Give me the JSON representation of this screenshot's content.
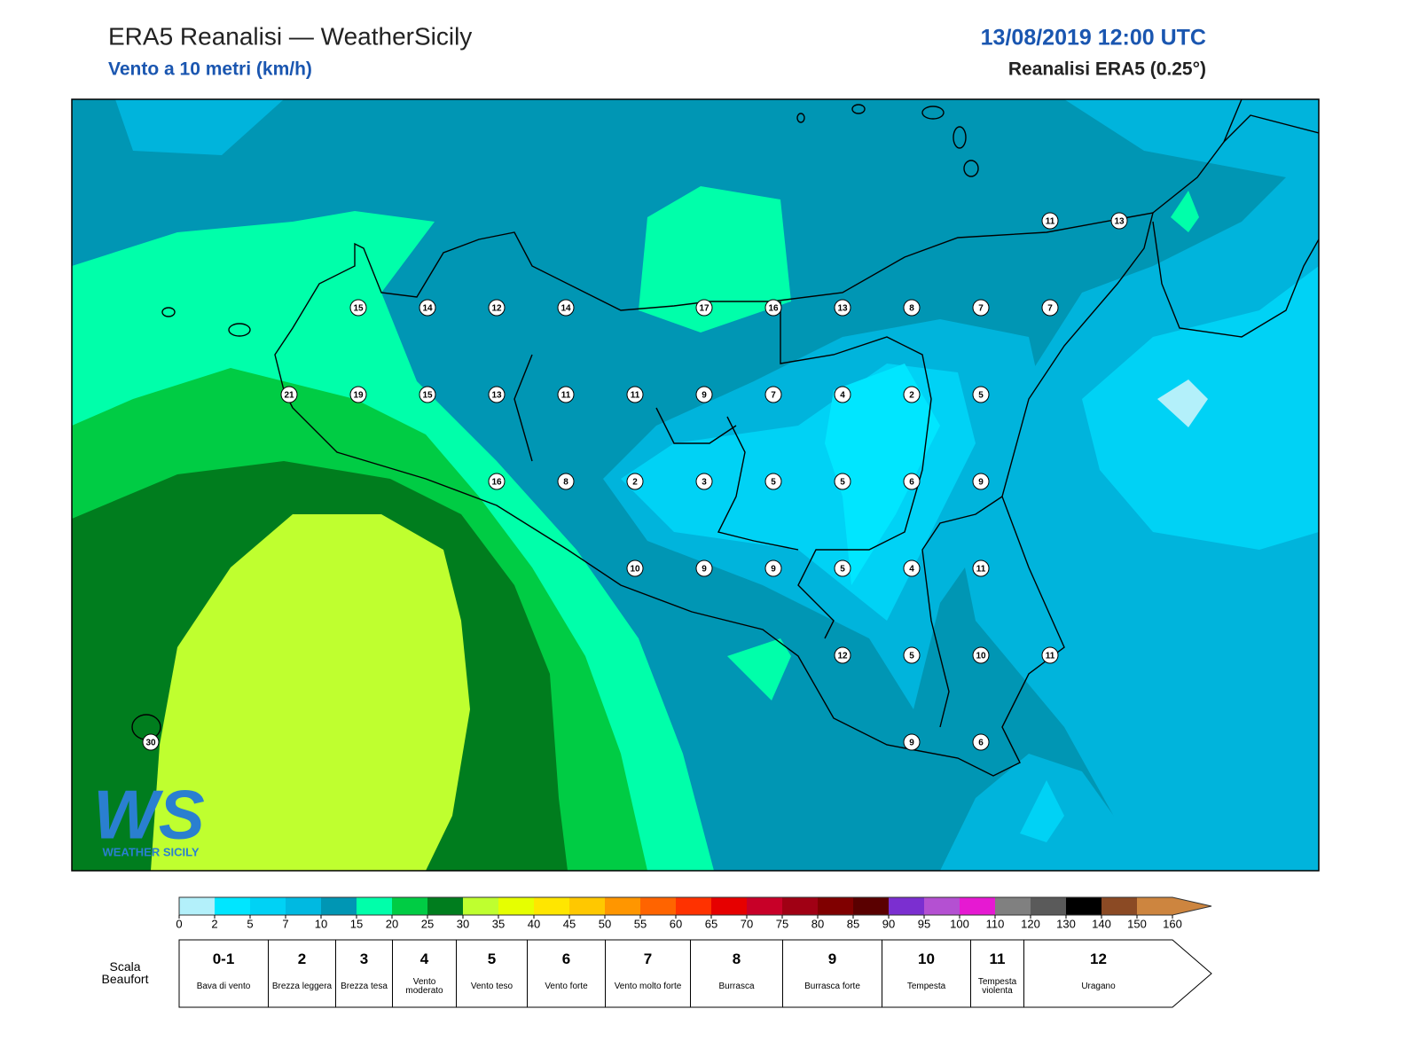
{
  "header": {
    "title": "ERA5 Reanalisi — WeatherSicily",
    "subtitle": "Vento a 10 metri (km/h)",
    "datetime": "13/08/2019 12:00 UTC",
    "source": "Reanalisi ERA5 (0.25°)"
  },
  "map": {
    "stations": [
      [
        null,
        null,
        null,
        null,
        null,
        null,
        null,
        null,
        null,
        null,
        null,
        null,
        null,
        "11",
        "13"
      ],
      [
        null,
        null,
        null,
        "15",
        "14",
        "12",
        "14",
        null,
        "17",
        "16",
        "13",
        "8",
        "7",
        "7",
        null
      ],
      [
        null,
        null,
        "21",
        "19",
        "15",
        "13",
        "11",
        "11",
        "9",
        "7",
        "4",
        "2",
        "5",
        null,
        null
      ],
      [
        null,
        null,
        null,
        null,
        null,
        "16",
        "8",
        "2",
        "3",
        "5",
        "5",
        "6",
        "9",
        null,
        null
      ],
      [
        null,
        null,
        null,
        null,
        null,
        null,
        null,
        "10",
        "9",
        "9",
        "5",
        "4",
        "11",
        null,
        null
      ],
      [
        null,
        null,
        null,
        null,
        null,
        null,
        null,
        null,
        null,
        null,
        "12",
        "5",
        "10",
        "11",
        null
      ],
      [
        "30",
        null,
        null,
        null,
        null,
        null,
        null,
        null,
        null,
        null,
        null,
        "9",
        "6",
        null,
        null
      ]
    ]
  },
  "logo": {
    "mark": "WS",
    "name": "WEATHER SICILY"
  },
  "colorbar": {
    "ticks": [
      0,
      2,
      5,
      7,
      10,
      15,
      20,
      25,
      30,
      35,
      40,
      45,
      50,
      55,
      60,
      65,
      70,
      75,
      80,
      85,
      90,
      95,
      100,
      110,
      120,
      130,
      140,
      150,
      160
    ],
    "colors": [
      "#b3f0fa",
      "#00e6ff",
      "#00d2f5",
      "#00b9e1",
      "#0096b4",
      "#00ffaa",
      "#00cc44",
      "#007d1e",
      "#bfff2f",
      "#e6ff00",
      "#ffe600",
      "#ffc800",
      "#ff9600",
      "#ff6400",
      "#ff3200",
      "#e60000",
      "#c80028",
      "#a00014",
      "#800000",
      "#5a0000",
      "#7b2fd0",
      "#b450d2",
      "#e619d2",
      "#808080",
      "#5a5a5a",
      "#000000",
      "#8b4a24",
      "#cd853f"
    ]
  },
  "beaufort": {
    "title": "Scala Beaufort",
    "levels": [
      {
        "force": "0-1",
        "name": "Bava di vento"
      },
      {
        "force": "2",
        "name": "Brezza leggera"
      },
      {
        "force": "3",
        "name": "Brezza tesa"
      },
      {
        "force": "4",
        "name": "Vento moderato"
      },
      {
        "force": "5",
        "name": "Vento teso"
      },
      {
        "force": "6",
        "name": "Vento forte"
      },
      {
        "force": "7",
        "name": "Vento molto forte"
      },
      {
        "force": "8",
        "name": "Burrasca"
      },
      {
        "force": "9",
        "name": "Burrasca forte"
      },
      {
        "force": "10",
        "name": "Tempesta"
      },
      {
        "force": "11",
        "name": "Tempesta violenta"
      },
      {
        "force": "12",
        "name": "Uragano"
      }
    ]
  }
}
